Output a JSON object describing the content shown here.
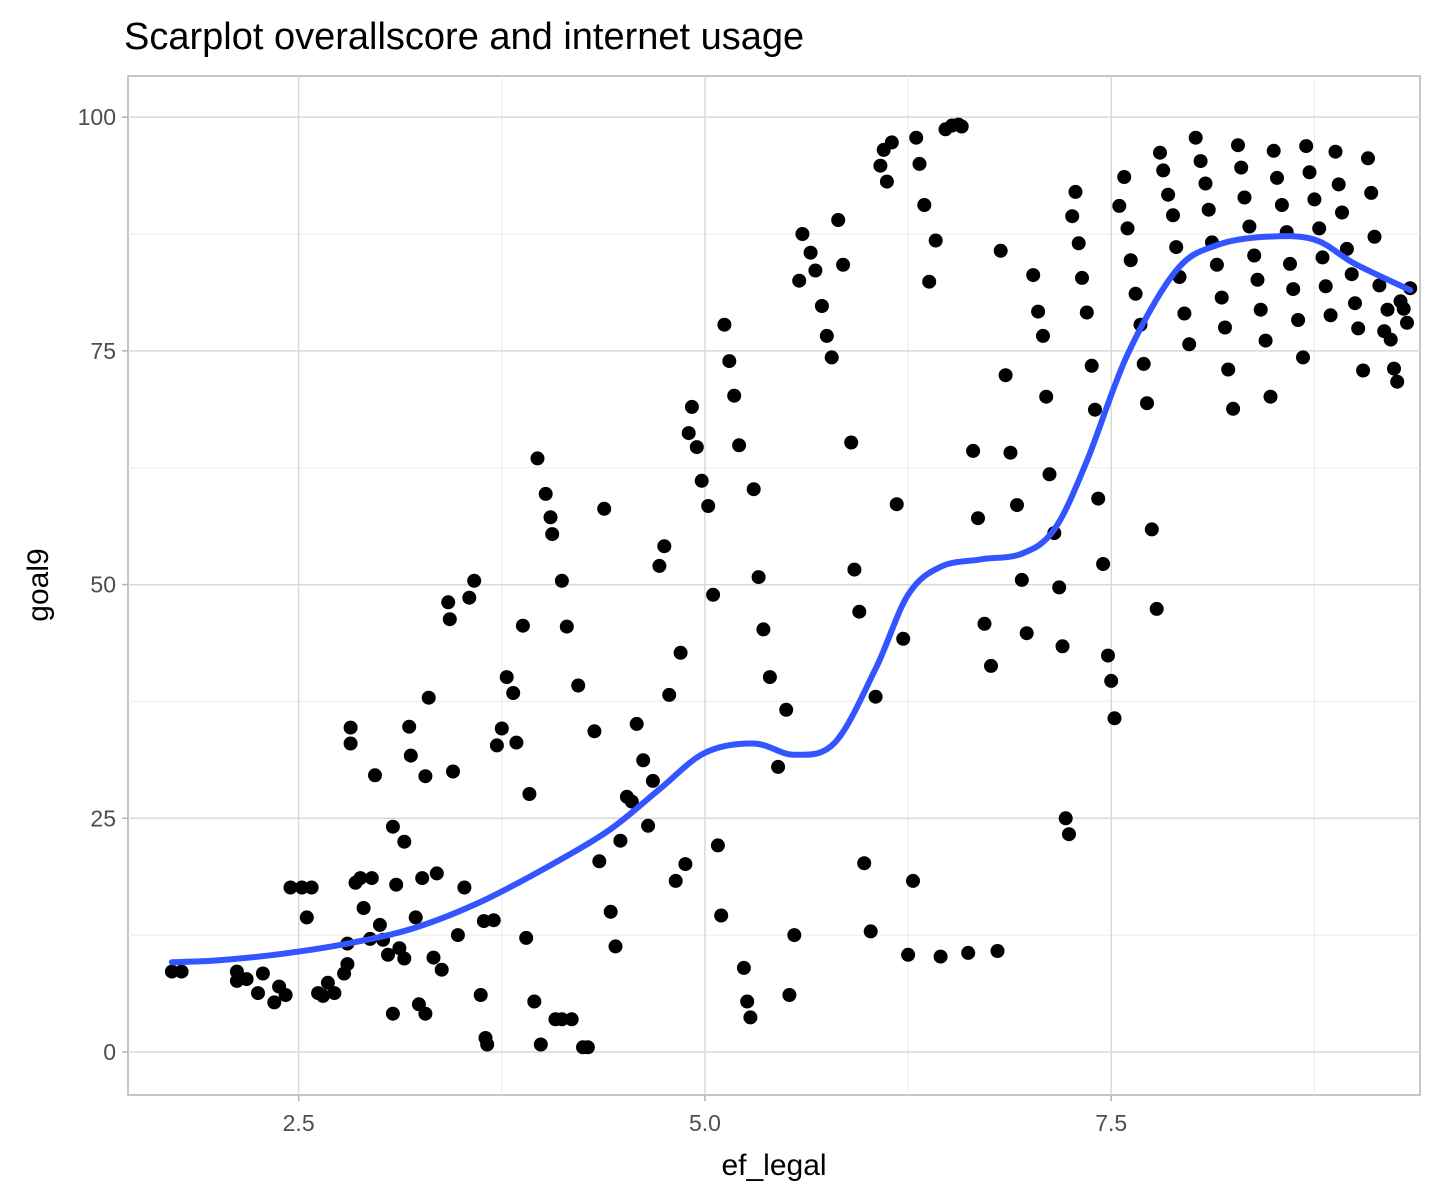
{
  "chart_data": {
    "type": "scatter",
    "title": "Scarplot overallscore and internet usage",
    "xlabel": "ef_legal",
    "ylabel": "goal9",
    "xlim": [
      1.45,
      9.4
    ],
    "ylim": [
      -4.6,
      104.4
    ],
    "x_ticks": [
      2.5,
      5.0,
      7.5
    ],
    "x_tick_labels": [
      "2.5",
      "5.0",
      "7.5"
    ],
    "y_ticks": [
      0,
      25,
      50,
      75,
      100
    ],
    "y_tick_labels": [
      "0",
      "25",
      "50",
      "75",
      "100"
    ],
    "grid": true,
    "legend": "none",
    "point_color": "#000000",
    "points": [
      [
        1.72,
        8.6
      ],
      [
        1.78,
        8.6
      ],
      [
        2.12,
        8.6
      ],
      [
        2.12,
        7.6
      ],
      [
        2.18,
        7.8
      ],
      [
        2.25,
        6.3
      ],
      [
        2.28,
        8.4
      ],
      [
        2.35,
        5.3
      ],
      [
        2.38,
        7.0
      ],
      [
        2.42,
        6.1
      ],
      [
        2.45,
        17.6
      ],
      [
        2.52,
        17.6
      ],
      [
        2.58,
        17.6
      ],
      [
        2.62,
        6.3
      ],
      [
        2.72,
        6.3
      ],
      [
        2.55,
        14.4
      ],
      [
        2.65,
        6.0
      ],
      [
        2.68,
        7.4
      ],
      [
        2.78,
        8.4
      ],
      [
        2.8,
        9.4
      ],
      [
        2.8,
        11.6
      ],
      [
        2.82,
        33.0
      ],
      [
        2.82,
        34.7
      ],
      [
        2.85,
        18.1
      ],
      [
        2.88,
        18.6
      ],
      [
        2.95,
        18.6
      ],
      [
        2.9,
        15.4
      ],
      [
        2.94,
        12.1
      ],
      [
        2.97,
        29.6
      ],
      [
        3.0,
        13.6
      ],
      [
        3.02,
        12.0
      ],
      [
        3.05,
        10.4
      ],
      [
        3.08,
        4.1
      ],
      [
        3.08,
        24.1
      ],
      [
        3.1,
        17.9
      ],
      [
        3.12,
        11.1
      ],
      [
        3.15,
        10.0
      ],
      [
        3.15,
        22.5
      ],
      [
        3.18,
        34.8
      ],
      [
        3.19,
        31.7
      ],
      [
        3.22,
        14.4
      ],
      [
        3.24,
        5.1
      ],
      [
        3.26,
        18.6
      ],
      [
        3.28,
        29.5
      ],
      [
        3.28,
        4.1
      ],
      [
        3.3,
        37.9
      ],
      [
        3.33,
        10.1
      ],
      [
        3.35,
        19.1
      ],
      [
        3.38,
        8.8
      ],
      [
        3.42,
        48.1
      ],
      [
        3.43,
        46.3
      ],
      [
        3.45,
        30.0
      ],
      [
        3.48,
        12.5
      ],
      [
        3.52,
        17.6
      ],
      [
        3.55,
        48.6
      ],
      [
        3.58,
        50.4
      ],
      [
        3.62,
        6.1
      ],
      [
        3.64,
        14.0
      ],
      [
        3.65,
        1.5
      ],
      [
        3.66,
        0.8
      ],
      [
        3.7,
        14.1
      ],
      [
        3.72,
        32.8
      ],
      [
        3.75,
        34.6
      ],
      [
        3.78,
        40.1
      ],
      [
        3.82,
        38.4
      ],
      [
        3.84,
        33.1
      ],
      [
        3.88,
        45.6
      ],
      [
        3.9,
        12.2
      ],
      [
        3.92,
        27.6
      ],
      [
        3.95,
        5.4
      ],
      [
        3.97,
        63.5
      ],
      [
        3.99,
        0.8
      ],
      [
        4.02,
        59.7
      ],
      [
        4.05,
        57.2
      ],
      [
        4.06,
        55.4
      ],
      [
        4.08,
        3.5
      ],
      [
        4.12,
        3.5
      ],
      [
        4.12,
        50.4
      ],
      [
        4.15,
        45.5
      ],
      [
        4.18,
        3.5
      ],
      [
        4.22,
        39.2
      ],
      [
        4.25,
        0.5
      ],
      [
        4.28,
        0.5
      ],
      [
        4.32,
        34.3
      ],
      [
        4.35,
        20.4
      ],
      [
        4.38,
        58.1
      ],
      [
        4.42,
        15.0
      ],
      [
        4.45,
        11.3
      ],
      [
        4.48,
        22.6
      ],
      [
        4.52,
        27.3
      ],
      [
        4.55,
        26.8
      ],
      [
        4.58,
        35.1
      ],
      [
        4.62,
        31.2
      ],
      [
        4.65,
        24.2
      ],
      [
        4.68,
        29.0
      ],
      [
        4.72,
        52.0
      ],
      [
        4.75,
        54.1
      ],
      [
        4.78,
        38.2
      ],
      [
        4.82,
        18.3
      ],
      [
        4.85,
        42.7
      ],
      [
        4.88,
        20.1
      ],
      [
        4.9,
        66.2
      ],
      [
        4.92,
        69.0
      ],
      [
        4.95,
        64.7
      ],
      [
        4.98,
        61.1
      ],
      [
        5.02,
        58.4
      ],
      [
        5.05,
        48.9
      ],
      [
        5.08,
        22.1
      ],
      [
        5.1,
        14.6
      ],
      [
        5.12,
        77.8
      ],
      [
        5.15,
        73.9
      ],
      [
        5.18,
        70.2
      ],
      [
        5.21,
        64.9
      ],
      [
        5.24,
        9.0
      ],
      [
        5.26,
        5.4
      ],
      [
        5.28,
        3.7
      ],
      [
        5.3,
        60.2
      ],
      [
        5.33,
        50.8
      ],
      [
        5.36,
        45.2
      ],
      [
        5.4,
        40.1
      ],
      [
        5.45,
        30.5
      ],
      [
        5.5,
        36.6
      ],
      [
        5.52,
        6.1
      ],
      [
        5.55,
        12.5
      ],
      [
        5.58,
        82.5
      ],
      [
        5.6,
        87.5
      ],
      [
        5.65,
        85.5
      ],
      [
        5.68,
        83.6
      ],
      [
        5.72,
        79.8
      ],
      [
        5.75,
        76.6
      ],
      [
        5.78,
        74.3
      ],
      [
        5.82,
        89.0
      ],
      [
        5.85,
        84.2
      ],
      [
        5.9,
        65.2
      ],
      [
        5.92,
        51.6
      ],
      [
        5.95,
        47.1
      ],
      [
        5.98,
        20.2
      ],
      [
        6.02,
        12.9
      ],
      [
        6.05,
        38.0
      ],
      [
        6.08,
        94.8
      ],
      [
        6.1,
        96.5
      ],
      [
        6.12,
        93.1
      ],
      [
        6.15,
        97.3
      ],
      [
        6.18,
        58.6
      ],
      [
        6.22,
        44.2
      ],
      [
        6.25,
        10.4
      ],
      [
        6.28,
        18.3
      ],
      [
        6.3,
        97.8
      ],
      [
        6.32,
        95.0
      ],
      [
        6.35,
        90.6
      ],
      [
        6.38,
        82.4
      ],
      [
        6.42,
        86.8
      ],
      [
        6.45,
        10.2
      ],
      [
        6.48,
        98.7
      ],
      [
        6.52,
        99.1
      ],
      [
        6.56,
        99.2
      ],
      [
        6.58,
        99.0
      ],
      [
        6.62,
        10.6
      ],
      [
        6.65,
        64.3
      ],
      [
        6.68,
        57.1
      ],
      [
        6.72,
        45.8
      ],
      [
        6.76,
        41.3
      ],
      [
        6.8,
        10.8
      ],
      [
        6.82,
        85.7
      ],
      [
        6.85,
        72.4
      ],
      [
        6.88,
        64.1
      ],
      [
        6.92,
        58.5
      ],
      [
        6.95,
        50.5
      ],
      [
        6.98,
        44.8
      ],
      [
        7.02,
        83.1
      ],
      [
        7.05,
        79.2
      ],
      [
        7.08,
        76.6
      ],
      [
        7.1,
        70.1
      ],
      [
        7.12,
        61.8
      ],
      [
        7.15,
        55.5
      ],
      [
        7.18,
        49.7
      ],
      [
        7.2,
        43.4
      ],
      [
        7.22,
        25.0
      ],
      [
        7.24,
        23.3
      ],
      [
        7.26,
        89.4
      ],
      [
        7.28,
        92.0
      ],
      [
        7.3,
        86.5
      ],
      [
        7.32,
        82.8
      ],
      [
        7.35,
        79.1
      ],
      [
        7.38,
        73.4
      ],
      [
        7.4,
        68.7
      ],
      [
        7.42,
        59.2
      ],
      [
        7.45,
        52.2
      ],
      [
        7.48,
        42.4
      ],
      [
        7.5,
        39.7
      ],
      [
        7.52,
        35.7
      ],
      [
        7.55,
        90.5
      ],
      [
        7.58,
        93.6
      ],
      [
        7.6,
        88.1
      ],
      [
        7.62,
        84.7
      ],
      [
        7.65,
        81.1
      ],
      [
        7.68,
        77.8
      ],
      [
        7.7,
        73.6
      ],
      [
        7.72,
        69.4
      ],
      [
        7.75,
        55.9
      ],
      [
        7.78,
        47.4
      ],
      [
        7.8,
        96.2
      ],
      [
        7.82,
        94.3
      ],
      [
        7.85,
        91.7
      ],
      [
        7.88,
        89.5
      ],
      [
        7.9,
        86.1
      ],
      [
        7.92,
        82.9
      ],
      [
        7.95,
        79.0
      ],
      [
        7.98,
        75.7
      ],
      [
        8.02,
        97.8
      ],
      [
        8.05,
        95.3
      ],
      [
        8.08,
        92.9
      ],
      [
        8.1,
        90.1
      ],
      [
        8.12,
        86.6
      ],
      [
        8.15,
        84.2
      ],
      [
        8.18,
        80.7
      ],
      [
        8.2,
        77.5
      ],
      [
        8.22,
        73.0
      ],
      [
        8.25,
        68.8
      ],
      [
        8.28,
        97.0
      ],
      [
        8.3,
        94.6
      ],
      [
        8.32,
        91.4
      ],
      [
        8.35,
        88.3
      ],
      [
        8.38,
        85.2
      ],
      [
        8.4,
        82.6
      ],
      [
        8.42,
        79.4
      ],
      [
        8.45,
        76.1
      ],
      [
        8.48,
        70.1
      ],
      [
        8.5,
        96.4
      ],
      [
        8.52,
        93.5
      ],
      [
        8.55,
        90.6
      ],
      [
        8.58,
        87.7
      ],
      [
        8.6,
        84.3
      ],
      [
        8.62,
        81.6
      ],
      [
        8.65,
        78.3
      ],
      [
        8.68,
        74.3
      ],
      [
        8.7,
        96.9
      ],
      [
        8.72,
        94.1
      ],
      [
        8.75,
        91.2
      ],
      [
        8.78,
        88.1
      ],
      [
        8.8,
        85.0
      ],
      [
        8.82,
        81.9
      ],
      [
        8.85,
        78.8
      ],
      [
        8.88,
        96.3
      ],
      [
        8.9,
        92.8
      ],
      [
        8.92,
        89.8
      ],
      [
        8.95,
        85.9
      ],
      [
        8.98,
        83.2
      ],
      [
        9.0,
        80.1
      ],
      [
        9.02,
        77.4
      ],
      [
        9.05,
        72.9
      ],
      [
        9.08,
        95.6
      ],
      [
        9.1,
        91.9
      ],
      [
        9.12,
        87.2
      ],
      [
        9.15,
        82.0
      ],
      [
        9.18,
        77.1
      ],
      [
        9.2,
        79.4
      ],
      [
        9.22,
        76.2
      ],
      [
        9.24,
        73.1
      ],
      [
        9.26,
        71.7
      ],
      [
        9.28,
        80.3
      ],
      [
        9.3,
        79.5
      ],
      [
        9.32,
        78.0
      ],
      [
        9.34,
        81.7
      ]
    ],
    "smooth_line": {
      "color": "#3355ff",
      "points": [
        [
          1.72,
          9.6
        ],
        [
          2.0,
          9.8
        ],
        [
          2.4,
          10.5
        ],
        [
          2.8,
          11.6
        ],
        [
          3.2,
          13.2
        ],
        [
          3.6,
          15.9
        ],
        [
          4.0,
          19.5
        ],
        [
          4.4,
          23.6
        ],
        [
          4.72,
          28.1
        ],
        [
          5.0,
          32.0
        ],
        [
          5.3,
          33.0
        ],
        [
          5.55,
          31.8
        ],
        [
          5.8,
          33.1
        ],
        [
          6.05,
          41.0
        ],
        [
          6.25,
          48.9
        ],
        [
          6.45,
          51.9
        ],
        [
          6.7,
          52.7
        ],
        [
          6.95,
          53.3
        ],
        [
          7.15,
          55.9
        ],
        [
          7.35,
          63.2
        ],
        [
          7.6,
          74.6
        ],
        [
          7.9,
          83.6
        ],
        [
          8.15,
          86.3
        ],
        [
          8.45,
          87.2
        ],
        [
          8.75,
          86.9
        ],
        [
          9.0,
          84.3
        ],
        [
          9.34,
          81.5
        ]
      ]
    }
  }
}
